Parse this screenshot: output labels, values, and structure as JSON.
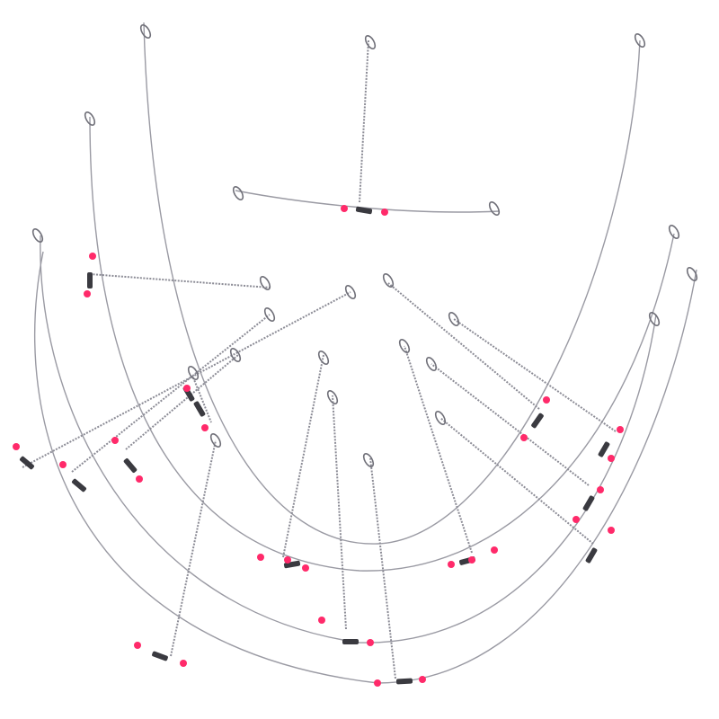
{
  "colors": {
    "background": "#ffffff",
    "wire": "#9a9aa3",
    "bead": "#ff2a6a",
    "sleeve": "#3a3a40"
  }
}
